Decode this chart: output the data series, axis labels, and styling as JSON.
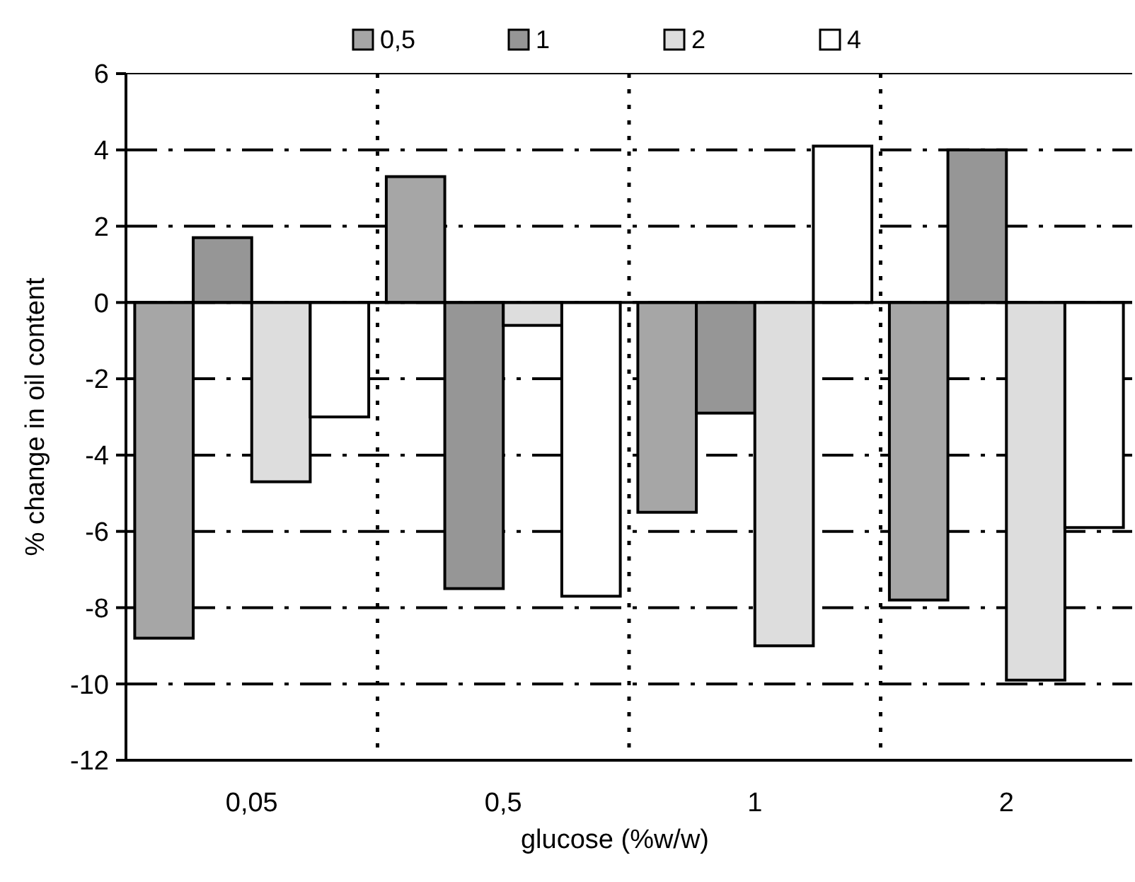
{
  "chart_data": {
    "type": "bar",
    "xlabel": "glucose (%w/w)",
    "ylabel": "% change in oil content",
    "categories": [
      "0,05",
      "0,5",
      "1",
      "2"
    ],
    "series": [
      {
        "name": "0,5",
        "color": "#a6a6a6",
        "values": [
          -8.8,
          3.3,
          -5.5,
          -7.8
        ]
      },
      {
        "name": "1",
        "color": "#969696",
        "values": [
          1.7,
          -7.5,
          -2.9,
          4.0
        ]
      },
      {
        "name": "2",
        "color": "#dddddd",
        "values": [
          -4.7,
          -0.6,
          -9.0,
          -9.9
        ]
      },
      {
        "name": "4",
        "color": "#ffffff",
        "values": [
          -3.0,
          -7.7,
          4.1,
          -5.9
        ]
      }
    ],
    "ylim": [
      -12,
      6
    ],
    "yticks": [
      -12,
      -10,
      -8,
      -6,
      -4,
      -2,
      0,
      2,
      4,
      6
    ],
    "grid": true,
    "legend": "top"
  }
}
